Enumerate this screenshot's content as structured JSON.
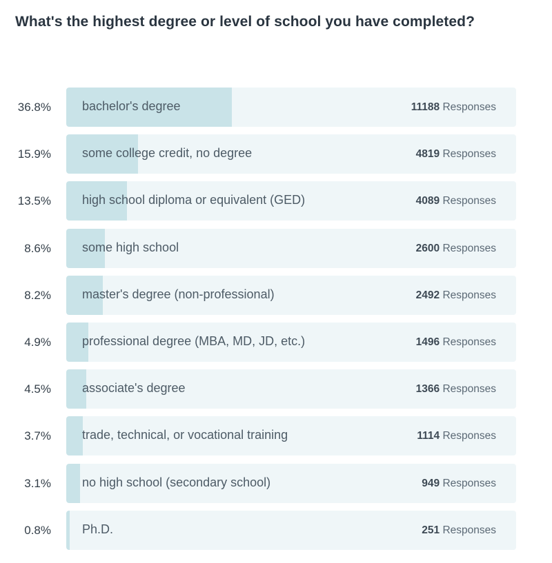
{
  "question": {
    "title": "What's the highest degree or level of school you have completed?"
  },
  "colors": {
    "bar_fill": "#c9e3e8",
    "bar_track": "#eff6f8",
    "text": "#333e48"
  },
  "responses_label": "Responses",
  "chart_data": {
    "type": "bar",
    "orientation": "horizontal",
    "title": "What's the highest degree or level of school you have completed?",
    "categories": [
      "bachelor's degree",
      "some college credit, no degree",
      "high school diploma or equivalent (GED)",
      "some high school",
      "master's degree (non-professional)",
      "professional degree (MBA, MD, JD, etc.)",
      "associate's degree",
      "trade, technical, or vocational training",
      "no high school (secondary school)",
      "Ph.D."
    ],
    "percent_labels": [
      "36.8%",
      "15.9%",
      "13.5%",
      "8.6%",
      "8.2%",
      "4.9%",
      "4.5%",
      "3.7%",
      "3.1%",
      "0.8%"
    ],
    "values": [
      36.8,
      15.9,
      13.5,
      8.6,
      8.2,
      4.9,
      4.5,
      3.7,
      3.1,
      0.8
    ],
    "counts": [
      11188,
      4819,
      4089,
      2600,
      2492,
      1496,
      1366,
      1114,
      949,
      251
    ],
    "xlim": [
      0,
      100
    ]
  }
}
